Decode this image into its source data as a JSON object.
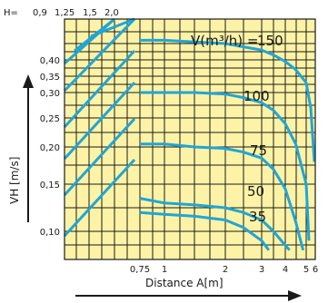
{
  "chart_data": {
    "type": "line",
    "xlabel": "Distance A[m]",
    "ylabel": "VH [m/s]",
    "x_ticks": [
      "0,75",
      "1",
      "2",
      "3",
      "4",
      "5",
      "6"
    ],
    "x_tick_values": [
      0.75,
      1,
      2,
      3,
      4,
      5,
      6
    ],
    "y_ticks": [
      "0,10",
      "0,15",
      "0,20",
      "0,25",
      "0,30",
      "0,35",
      "0,40"
    ],
    "y_tick_values": [
      0.1,
      0.15,
      0.2,
      0.25,
      0.3,
      0.35,
      0.4
    ],
    "h_prefix": "H=",
    "h_labels": [
      "0,9",
      "1,25",
      "1,5",
      "2,0"
    ],
    "v_legend_prefix": "V(m³/h) =",
    "grid": true,
    "colors": {
      "background": "#fdf3a6",
      "grid": "#1a1a1a",
      "curve": "#1fa6d6",
      "axis_arrow": "#1a1a1a"
    },
    "series": [
      {
        "name": "150",
        "x": [
          0.75,
          1.0,
          1.5,
          2.0,
          2.5,
          3.0,
          3.5,
          4.0,
          4.5,
          5.0,
          5.5,
          5.9
        ],
        "y": [
          0.46,
          0.46,
          0.455,
          0.45,
          0.44,
          0.43,
          0.415,
          0.395,
          0.37,
          0.33,
          0.27,
          0.18
        ]
      },
      {
        "name": "100",
        "x": [
          0.75,
          1.0,
          1.5,
          2.0,
          2.5,
          3.0,
          3.5,
          4.0,
          4.5,
          5.0,
          5.3
        ],
        "y": [
          0.3,
          0.3,
          0.3,
          0.297,
          0.29,
          0.28,
          0.265,
          0.24,
          0.205,
          0.15,
          0.09
        ]
      },
      {
        "name": "75",
        "x": [
          0.75,
          1.0,
          1.5,
          2.0,
          2.5,
          3.0,
          3.5,
          4.0,
          4.5,
          4.85
        ],
        "y": [
          0.205,
          0.205,
          0.2,
          0.198,
          0.193,
          0.185,
          0.17,
          0.145,
          0.11,
          0.08
        ]
      },
      {
        "name": "50",
        "x": [
          0.75,
          1.0,
          1.5,
          2.0,
          2.5,
          3.0,
          3.5,
          3.9,
          4.2
        ],
        "y": [
          0.135,
          0.13,
          0.128,
          0.125,
          0.12,
          0.112,
          0.1,
          0.088,
          0.08
        ]
      },
      {
        "name": "35",
        "x": [
          0.75,
          1.0,
          1.5,
          2.0,
          2.5,
          3.0,
          3.3
        ],
        "y": [
          0.12,
          0.118,
          0.116,
          0.112,
          0.104,
          0.09,
          0.08
        ]
      }
    ],
    "h_lines": [
      {
        "name": "0,9",
        "x": [
          0.13,
          0.24
        ],
        "y": [
          0.1,
          0.46
        ]
      },
      {
        "name": "1,25",
        "x": [
          0.18,
          0.3
        ],
        "y": [
          0.1,
          0.46
        ]
      },
      {
        "name": "1,5",
        "x": [
          0.26,
          0.42
        ],
        "y": [
          0.1,
          0.46
        ]
      },
      {
        "name": "2,0",
        "x": [
          0.36,
          0.58
        ],
        "y": [
          0.1,
          0.46
        ]
      }
    ]
  }
}
